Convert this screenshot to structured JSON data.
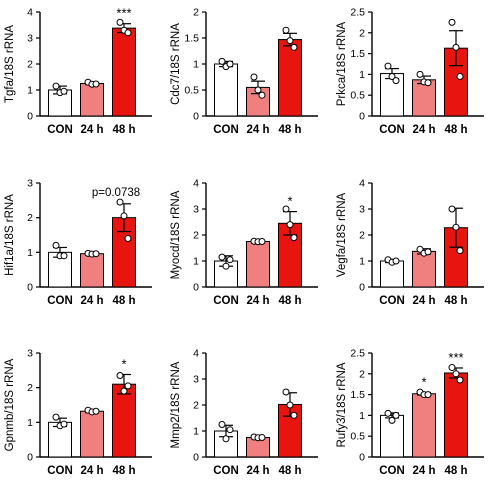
{
  "colors": {
    "CON": "#ffffff",
    "24 h": "#f08080",
    "48 h": "#e8140f"
  },
  "chart_data": [
    {
      "type": "bar",
      "ylabel": "Tgfa/18S rRNA",
      "categories": [
        "CON",
        "24 h",
        "48 h"
      ],
      "values": [
        1.0,
        1.25,
        3.38
      ],
      "errors": [
        0.15,
        0.04,
        0.17
      ],
      "points": [
        [
          1.15,
          0.9,
          0.95
        ],
        [
          1.3,
          1.22,
          1.23
        ],
        [
          3.6,
          3.3,
          3.2
        ]
      ],
      "ylim": [
        0,
        4
      ],
      "yticks": [
        0,
        1,
        2,
        3,
        4
      ],
      "annotations": [
        {
          "category": "48 h",
          "text": "***"
        }
      ]
    },
    {
      "type": "bar",
      "ylabel": "Cdc7/18S rRNA",
      "categories": [
        "CON",
        "24 h",
        "48 h"
      ],
      "values": [
        1.0,
        0.55,
        1.47
      ],
      "errors": [
        0.05,
        0.12,
        0.12
      ],
      "points": [
        [
          1.05,
          0.95,
          1.0
        ],
        [
          0.75,
          0.5,
          0.4
        ],
        [
          1.65,
          1.45,
          1.32
        ]
      ],
      "ylim": [
        0,
        2
      ],
      "yticks": [
        0,
        0.5,
        1,
        1.5,
        2
      ],
      "annotations": []
    },
    {
      "type": "bar",
      "ylabel": "Prkca/18S rRNA",
      "categories": [
        "CON",
        "24 h",
        "48 h"
      ],
      "values": [
        1.02,
        0.87,
        1.63
      ],
      "errors": [
        0.12,
        0.09,
        0.42
      ],
      "points": [
        [
          1.2,
          0.95,
          0.85
        ],
        [
          1.0,
          0.82,
          0.8
        ],
        [
          2.25,
          1.65,
          0.95
        ]
      ],
      "ylim": [
        0,
        2.5
      ],
      "yticks": [
        0,
        0.5,
        1,
        1.5,
        2,
        2.5
      ],
      "annotations": []
    },
    {
      "type": "bar",
      "ylabel": "Hif1a/18S rRNA",
      "categories": [
        "CON",
        "24 h",
        "48 h"
      ],
      "values": [
        1.0,
        0.96,
        2.0
      ],
      "errors": [
        0.14,
        0.03,
        0.4
      ],
      "points": [
        [
          1.2,
          0.9,
          0.9
        ],
        [
          0.97,
          0.95,
          0.96
        ],
        [
          2.45,
          2.05,
          1.4
        ]
      ],
      "ylim": [
        0,
        3
      ],
      "yticks": [
        0,
        1,
        2,
        3
      ],
      "annotations": [
        {
          "category": "48 h",
          "text": "p=0.0738"
        }
      ]
    },
    {
      "type": "bar",
      "ylabel": "Myocd/18S rRNA",
      "categories": [
        "CON",
        "24 h",
        "48 h"
      ],
      "values": [
        1.0,
        1.75,
        2.45
      ],
      "errors": [
        0.2,
        0.02,
        0.45
      ],
      "points": [
        [
          1.15,
          0.8,
          1.05
        ],
        [
          1.76,
          1.74,
          1.75
        ],
        [
          3.0,
          2.4,
          1.9
        ]
      ],
      "ylim": [
        0,
        4
      ],
      "yticks": [
        0,
        1,
        2,
        3,
        4
      ],
      "annotations": [
        {
          "category": "48 h",
          "text": "*"
        }
      ]
    },
    {
      "type": "bar",
      "ylabel": "Vegfa/18S rRNA",
      "categories": [
        "CON",
        "24 h",
        "48 h"
      ],
      "values": [
        1.0,
        1.37,
        2.28
      ],
      "errors": [
        0.06,
        0.1,
        0.75
      ],
      "points": [
        [
          1.05,
          0.95,
          1.0
        ],
        [
          1.45,
          1.3,
          1.35
        ],
        [
          3.0,
          2.3,
          1.4
        ]
      ],
      "ylim": [
        0,
        4
      ],
      "yticks": [
        0,
        1,
        2,
        3,
        4
      ],
      "annotations": []
    },
    {
      "type": "bar",
      "ylabel": "Gpnmb/18S rRNA",
      "categories": [
        "CON",
        "24 h",
        "48 h"
      ],
      "values": [
        1.0,
        1.32,
        2.1
      ],
      "errors": [
        0.12,
        0.04,
        0.28
      ],
      "points": [
        [
          1.15,
          0.9,
          0.95
        ],
        [
          1.35,
          1.3,
          1.32
        ],
        [
          2.35,
          1.9,
          2.05
        ]
      ],
      "ylim": [
        0,
        3
      ],
      "yticks": [
        0,
        1,
        2,
        3
      ],
      "annotations": [
        {
          "category": "48 h",
          "text": "*"
        }
      ]
    },
    {
      "type": "bar",
      "ylabel": "Mmp2/18S rRNA",
      "categories": [
        "CON",
        "24 h",
        "48 h"
      ],
      "values": [
        1.0,
        0.75,
        2.02
      ],
      "errors": [
        0.22,
        0.03,
        0.45
      ],
      "points": [
        [
          1.25,
          0.7,
          1.05
        ],
        [
          0.77,
          0.74,
          0.75
        ],
        [
          2.5,
          2.0,
          1.6
        ]
      ],
      "ylim": [
        0,
        4
      ],
      "yticks": [
        0,
        1,
        2,
        3,
        4
      ],
      "annotations": []
    },
    {
      "type": "bar",
      "ylabel": "Rufy3/18S rRNA",
      "categories": [
        "CON",
        "24 h",
        "48 h"
      ],
      "values": [
        1.0,
        1.52,
        2.02
      ],
      "errors": [
        0.06,
        0.03,
        0.12
      ],
      "points": [
        [
          1.05,
          0.88,
          1.0
        ],
        [
          1.56,
          1.5,
          1.5
        ],
        [
          2.15,
          2.0,
          1.85
        ]
      ],
      "ylim": [
        0,
        2.5
      ],
      "yticks": [
        0,
        0.5,
        1,
        1.5,
        2,
        2.5
      ],
      "annotations": [
        {
          "category": "24 h",
          "text": "*"
        },
        {
          "category": "48 h",
          "text": "***"
        }
      ]
    }
  ]
}
